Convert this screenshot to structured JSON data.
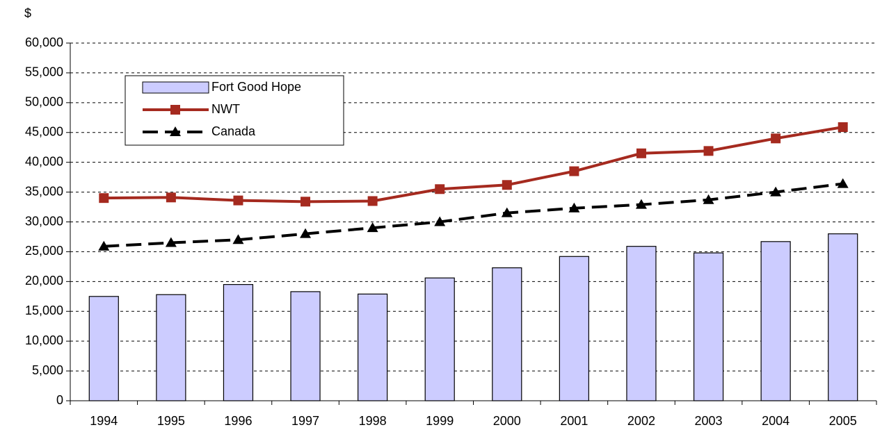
{
  "chart_data": {
    "type": "bar",
    "y_label": "$",
    "categories": [
      "1994",
      "1995",
      "1996",
      "1997",
      "1998",
      "1999",
      "2000",
      "2001",
      "2002",
      "2003",
      "2004",
      "2005"
    ],
    "series": [
      {
        "name": "Fort Good Hope",
        "type": "bar",
        "color": "#ccccff",
        "values": [
          17500,
          17800,
          19500,
          18300,
          17900,
          20600,
          22300,
          24200,
          25900,
          24800,
          26700,
          28000
        ]
      },
      {
        "name": "NWT",
        "type": "line",
        "marker": "square",
        "line_style": "solid",
        "color": "#a52a1f",
        "values": [
          34000,
          34100,
          33600,
          33400,
          33500,
          35500,
          36200,
          38500,
          41500,
          41900,
          44000,
          45900
        ]
      },
      {
        "name": "Canada",
        "type": "line",
        "marker": "triangle",
        "line_style": "dashed",
        "color": "#000000",
        "values": [
          25900,
          26500,
          27000,
          28000,
          29000,
          30000,
          31500,
          32300,
          32900,
          33700,
          35000,
          36400
        ]
      }
    ],
    "ylim": [
      0,
      60000
    ],
    "yticks": [
      0,
      {
        "value": 5000,
        "label": "5,000"
      },
      {
        "value": 10000,
        "label": "10,000"
      },
      {
        "value": 15000,
        "label": "15,000"
      },
      {
        "value": 20000,
        "label": "20,000"
      },
      {
        "value": 25000,
        "label": "25,000"
      },
      {
        "value": 30000,
        "label": "30,000"
      },
      {
        "value": 35000,
        "label": "35,000"
      },
      {
        "value": 40000,
        "label": "40,000"
      },
      {
        "value": 45000,
        "label": "45,000"
      },
      {
        "value": 50000,
        "label": "50,000"
      },
      {
        "value": 55000,
        "label": "55,000"
      },
      {
        "value": 60000,
        "label": "60,000"
      }
    ],
    "grid": true,
    "legend": "upper left"
  }
}
